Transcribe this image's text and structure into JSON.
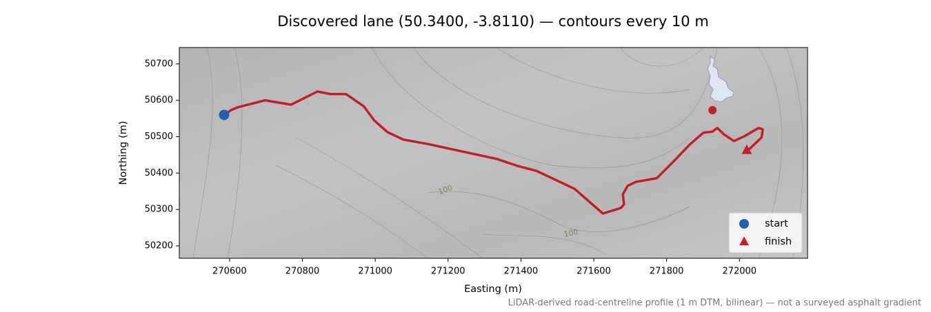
{
  "chart_data": {
    "type": "map_route",
    "title": "Discovered lane (50.3400, -3.8110) — contours every 10 m",
    "x_label": "Easting (m)",
    "y_label": "Northing (m)",
    "note": "LiDAR-derived road-centreline profile (1 m DTM, bilinear) — not a surveyed asphalt gradient",
    "xlim": [
      270462,
      272187
    ],
    "ylim": [
      50166,
      50745
    ],
    "xticks": [
      270600,
      270800,
      271000,
      271200,
      271400,
      271600,
      271800,
      272000
    ],
    "yticks": [
      50200,
      50300,
      50400,
      50500,
      50600,
      50700
    ],
    "contour_level_labels": [
      100,
      100
    ],
    "route": {
      "color": "#c41e2a",
      "x": [
        270585,
        270604,
        270623,
        270697,
        270769,
        270841,
        270878,
        270920,
        270969,
        270997,
        271033,
        271077,
        271144,
        271333,
        271390,
        271443,
        271547,
        271625,
        271674,
        271683,
        271680,
        271693,
        271716,
        271773,
        271826,
        271863,
        271901,
        271926,
        271939,
        271958,
        271985,
        272013,
        272053,
        272064,
        272061,
        272023
      ],
      "y": [
        50560,
        50573,
        50581,
        50600,
        50588,
        50624,
        50617,
        50617,
        50583,
        50545,
        50513,
        50492,
        50480,
        50439,
        50420,
        50406,
        50357,
        50289,
        50304,
        50314,
        50342,
        50365,
        50376,
        50386,
        50439,
        50478,
        50511,
        50514,
        50524,
        50506,
        50488,
        50501,
        50524,
        50520,
        50498,
        50462
      ]
    },
    "point": {
      "color": "#c41e2a",
      "x": 271926,
      "y": 50573
    },
    "markers": [
      {
        "name": "start",
        "color": "#2060b0",
        "shape": "circle",
        "x": 270585,
        "y": 50560
      },
      {
        "name": "finish",
        "color": "#c41e2a",
        "shape": "triangle",
        "x": 272020,
        "y": 50463
      }
    ],
    "legend": "lower right"
  }
}
